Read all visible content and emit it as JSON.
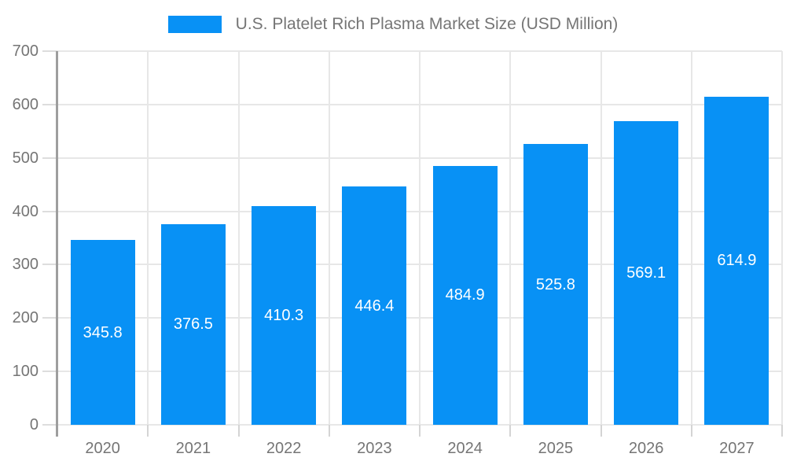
{
  "chart_data": {
    "type": "bar",
    "title": "U.S. Platelet Rich Plasma Market Size (USD Million)",
    "categories": [
      "2020",
      "2021",
      "2022",
      "2023",
      "2024",
      "2025",
      "2026",
      "2027"
    ],
    "values": [
      345.8,
      376.5,
      410.3,
      446.4,
      484.9,
      525.8,
      569.1,
      614.9
    ],
    "value_labels": [
      "345.8",
      "376.5",
      "410.3",
      "446.4",
      "484.9",
      "525.8",
      "569.1",
      "614.9"
    ],
    "xlabel": "",
    "ylabel": "",
    "ylim": [
      0,
      700
    ],
    "ytick_step": 100,
    "ytick_labels": [
      "0",
      "100",
      "200",
      "300",
      "400",
      "500",
      "600",
      "700"
    ],
    "grid": true,
    "legend_position": "top",
    "colors": {
      "bar": "#0891F5",
      "value_label": "#FFFFFF",
      "axis_text": "#757575",
      "axis_line": "#9E9E9E",
      "gridline": "#E7E7E7",
      "tick": "#D4D4D4"
    }
  }
}
